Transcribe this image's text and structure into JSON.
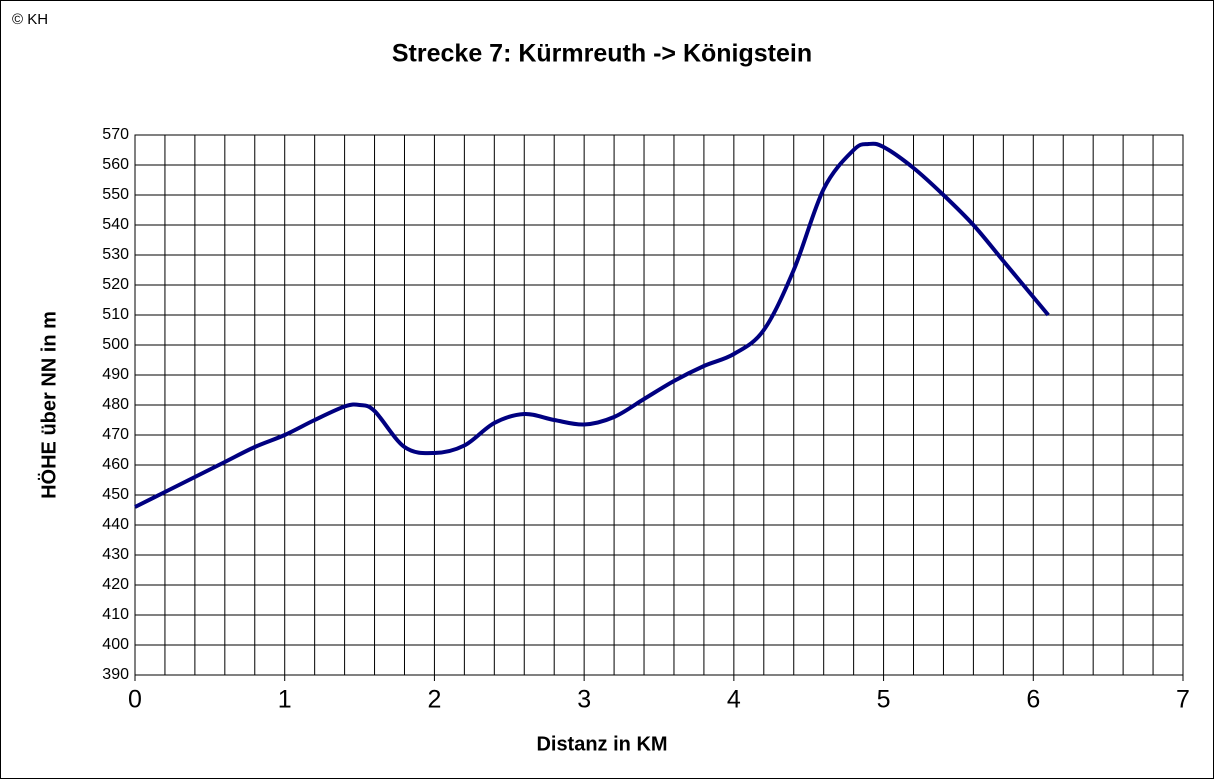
{
  "copyright": "© KH",
  "chart_data": {
    "type": "line",
    "title": "Strecke 7: Kürmreuth -> Königstein",
    "xlabel": "Distanz in KM",
    "ylabel": "HÖHE über NN in m",
    "x": [
      0,
      0.2,
      0.4,
      0.6,
      0.8,
      1.0,
      1.2,
      1.4,
      1.5,
      1.6,
      1.8,
      2.0,
      2.2,
      2.4,
      2.6,
      2.8,
      3.0,
      3.2,
      3.4,
      3.6,
      3.8,
      4.0,
      4.2,
      4.4,
      4.6,
      4.8,
      4.9,
      5.0,
      5.2,
      5.4,
      5.6,
      5.8,
      6.0,
      6.1
    ],
    "series": [
      {
        "color": "#000080",
        "values": [
          446,
          451,
          456,
          461,
          466,
          470,
          475,
          479.5,
          480,
          478,
          466,
          464,
          466.5,
          474,
          477,
          475,
          473.5,
          476,
          482,
          488,
          493,
          497,
          505,
          525,
          552,
          565,
          567,
          566,
          559,
          550,
          540,
          528,
          516,
          510
        ]
      }
    ],
    "xlim": [
      0,
      7
    ],
    "xticks": [
      0,
      1,
      2,
      3,
      4,
      5,
      6,
      7
    ],
    "xminorticks": [
      0.2,
      0.4,
      0.6,
      0.8,
      1.2,
      1.4,
      1.6,
      1.8,
      2.2,
      2.4,
      2.6,
      2.8,
      3.2,
      3.4,
      3.6,
      3.8,
      4.2,
      4.4,
      4.6,
      4.8,
      5.2,
      5.4,
      5.6,
      5.8,
      6.2,
      6.4,
      6.6,
      6.8
    ],
    "ylim": [
      390,
      570
    ],
    "yticks": [
      390,
      400,
      410,
      420,
      430,
      440,
      450,
      460,
      470,
      480,
      490,
      500,
      510,
      520,
      530,
      540,
      550,
      560,
      570
    ],
    "grid": true
  }
}
